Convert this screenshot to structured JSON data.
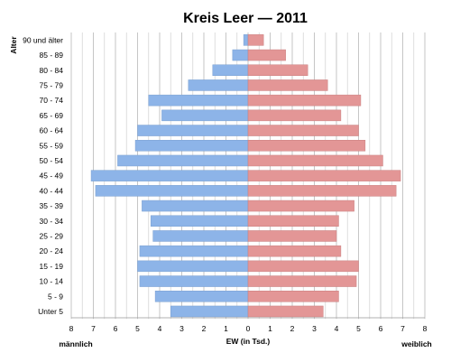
{
  "chart_data": {
    "type": "bar",
    "title": "Kreis Leer — 2011",
    "ylabel": "Alter",
    "xlabel": "EW (in Tsd.)",
    "left_label": "männlich",
    "right_label": "weiblich",
    "xlim": [
      -8,
      8
    ],
    "x_ticks": [
      "8",
      "7",
      "6",
      "5",
      "4",
      "3",
      "2",
      "1",
      "0",
      "1",
      "2",
      "3",
      "4",
      "5",
      "6",
      "7",
      "8"
    ],
    "grid": true,
    "categories": [
      "90 und älter",
      "85 - 89",
      "80 - 84",
      "75 - 79",
      "70 - 74",
      "65 - 69",
      "60 - 64",
      "55 - 59",
      "50 - 54",
      "45 - 49",
      "40 - 44",
      "35 - 39",
      "30 - 34",
      "25 - 29",
      "20 - 24",
      "15 - 19",
      "10 - 14",
      "5 - 9",
      "Unter 5"
    ],
    "series": [
      {
        "name": "männlich",
        "color": "#8db4e8",
        "values": [
          0.2,
          0.7,
          1.6,
          2.7,
          4.5,
          3.9,
          5.0,
          5.1,
          5.9,
          7.1,
          6.9,
          4.8,
          4.4,
          4.3,
          4.9,
          5.0,
          4.9,
          4.2,
          3.5
        ]
      },
      {
        "name": "weiblich",
        "color": "#e39696",
        "values": [
          0.7,
          1.7,
          2.7,
          3.6,
          5.1,
          4.2,
          5.0,
          5.3,
          6.1,
          6.9,
          6.7,
          4.8,
          4.1,
          4.0,
          4.2,
          5.0,
          4.9,
          4.1,
          3.4
        ]
      }
    ]
  }
}
